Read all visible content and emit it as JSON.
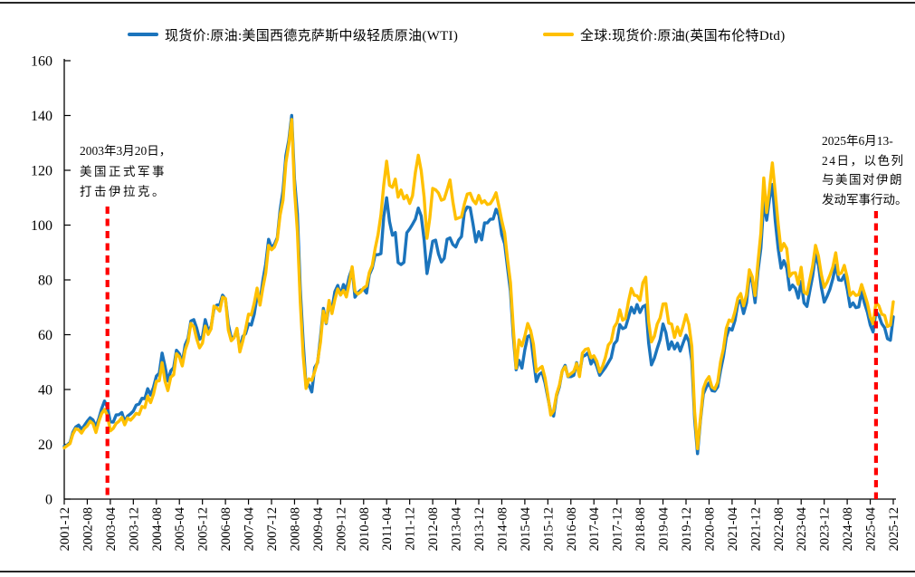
{
  "legend": {
    "items": [
      {
        "label": "现货价:原油:美国西德克萨斯中级轻质原油(WTI)",
        "color": "#1b74bc"
      },
      {
        "label": "全球:现货价:原油(英国布伦特Dtd)",
        "color": "#ffc000"
      }
    ]
  },
  "annotations": {
    "left": {
      "line1": "2003年3月20日，",
      "line2": "美国正式军事",
      "line3": "打击伊拉克。",
      "event_x": "2003-03"
    },
    "right": {
      "line1": "2025年6月13-",
      "line2": "24日，以色列",
      "line3": "与美国对伊朗",
      "line4": "发动军事行动。",
      "event_x": "2025-06"
    }
  },
  "chart_data": {
    "type": "line",
    "title": "",
    "xlabel": "",
    "ylabel": "",
    "x_start": "2001-12",
    "x_end": "2025-12",
    "x_frequency": "monthly",
    "ylim": [
      0,
      160
    ],
    "y_ticks": [
      0,
      20,
      40,
      60,
      80,
      100,
      120,
      140,
      160
    ],
    "grid": false,
    "legend_position": "top",
    "x_ticklabels": [
      "2001-12",
      "2002-08",
      "2003-04",
      "2003-12",
      "2004-08",
      "2005-04",
      "2005-12",
      "2006-08",
      "2007-04",
      "2007-12",
      "2008-08",
      "2009-04",
      "2009-12",
      "2010-08",
      "2011-04",
      "2011-12",
      "2012-08",
      "2013-04",
      "2013-12",
      "2014-08",
      "2015-04",
      "2015-12",
      "2016-08",
      "2017-04",
      "2017-12",
      "2018-08",
      "2019-04",
      "2019-12",
      "2020-08",
      "2021-04",
      "2021-12",
      "2022-08",
      "2023-04",
      "2023-12",
      "2024-08",
      "2025-04",
      "2025-12"
    ],
    "event_lines": [
      {
        "x": "2003-03",
        "color": "#ff0000",
        "style": "dashed",
        "label": "2003年3月20日，美国正式军事打击伊拉克。"
      },
      {
        "x": "2025-06",
        "color": "#ff0000",
        "style": "dashed",
        "label": "2025年6月13-24日，以色列与美国对伊朗发动军事行动。"
      }
    ],
    "series": [
      {
        "name": "现货价:原油:美国西德克萨斯中级轻质原油(WTI)",
        "color": "#1b74bc",
        "values": [
          19.3,
          19.7,
          20.7,
          24.4,
          26.3,
          27.0,
          25.5,
          26.9,
          28.4,
          29.7,
          28.9,
          26.3,
          29.4,
          33.0,
          35.8,
          33.5,
          28.2,
          28.1,
          30.7,
          30.8,
          31.6,
          28.3,
          30.3,
          31.1,
          32.1,
          34.3,
          34.7,
          36.8,
          36.7,
          40.3,
          38.0,
          40.8,
          44.9,
          46.0,
          53.3,
          48.5,
          43.1,
          46.8,
          48.0,
          54.3,
          53.0,
          49.8,
          56.3,
          58.7,
          65.0,
          65.5,
          62.4,
          58.3,
          59.4,
          65.5,
          61.6,
          62.9,
          69.4,
          70.8,
          70.9,
          74.4,
          73.0,
          63.8,
          58.9,
          59.1,
          62.0,
          54.5,
          59.3,
          60.4,
          64.0,
          63.5,
          67.5,
          74.1,
          72.4,
          79.9,
          85.8,
          94.8,
          91.7,
          93.0,
          95.4,
          105.5,
          112.6,
          125.4,
          131.0,
          140.0,
          116.7,
          104.1,
          76.6,
          57.3,
          41.1,
          41.7,
          39.1,
          48.0,
          49.8,
          59.0,
          69.6,
          64.1,
          71.0,
          69.4,
          75.7,
          78.0,
          74.5,
          78.3,
          76.4,
          81.2,
          84.3,
          73.7,
          75.3,
          76.3,
          76.6,
          75.2,
          81.9,
          84.3,
          89.2,
          89.2,
          89.6,
          103.0,
          110.0,
          101.3,
          96.3,
          97.3,
          86.3,
          85.6,
          86.4,
          97.2,
          98.6,
          100.3,
          102.2,
          106.2,
          103.3,
          94.7,
          82.3,
          87.9,
          94.1,
          94.5,
          89.5,
          86.5,
          87.9,
          94.8,
          95.3,
          92.9,
          92.0,
          94.5,
          95.8,
          104.7,
          106.6,
          106.3,
          100.5,
          93.9,
          97.6,
          94.6,
          100.8,
          100.8,
          102.1,
          102.2,
          105.8,
          103.6,
          96.5,
          93.2,
          84.4,
          75.8,
          59.3,
          47.2,
          50.6,
          47.8,
          54.5,
          59.3,
          59.8,
          51.2,
          42.9,
          45.5,
          46.2,
          42.4,
          37.2,
          31.7,
          30.3,
          37.6,
          41.0,
          46.7,
          48.8,
          44.7,
          44.7,
          45.2,
          49.8,
          45.7,
          52.0,
          52.5,
          53.5,
          49.3,
          51.1,
          48.5,
          45.2,
          46.6,
          48.0,
          49.8,
          51.6,
          56.6,
          57.9,
          63.7,
          62.2,
          62.7,
          66.3,
          70.0,
          67.9,
          71.0,
          68.1,
          70.2,
          70.8,
          57.0,
          49.0,
          51.4,
          55.0,
          58.2,
          63.9,
          60.8,
          54.7,
          57.4,
          54.8,
          56.9,
          54.0,
          57.0,
          59.8,
          57.5,
          50.5,
          29.2,
          16.6,
          28.6,
          38.3,
          40.8,
          42.4,
          39.6,
          39.4,
          41.0,
          47.0,
          52.0,
          59.0,
          62.3,
          61.7,
          65.2,
          71.4,
          72.5,
          67.7,
          71.6,
          81.2,
          79.2,
          71.7,
          83.2,
          91.6,
          108.5,
          101.8,
          109.5,
          114.8,
          101.6,
          91.5,
          84.3,
          87.0,
          84.4,
          76.4,
          78.1,
          76.9,
          73.4,
          79.4,
          71.6,
          70.3,
          76.0,
          81.4,
          89.4,
          85.5,
          77.4,
          71.9,
          74.0,
          76.6,
          80.4,
          85.4,
          80.0,
          79.8,
          81.8,
          76.7,
          70.2,
          71.6,
          69.9,
          70.1,
          75.7,
          71.5,
          68.2,
          63.5,
          61.0,
          68.5,
          67.0,
          64.0,
          62.5,
          58.5,
          58.0,
          66.5
        ]
      },
      {
        "name": "全球:现货价:原油(英国布伦特Dtd)",
        "color": "#ffc000",
        "values": [
          18.7,
          19.5,
          20.3,
          23.7,
          25.7,
          25.3,
          24.1,
          25.8,
          26.7,
          28.4,
          27.5,
          24.3,
          28.3,
          31.2,
          32.7,
          30.5,
          24.9,
          25.8,
          27.6,
          28.4,
          29.8,
          27.1,
          29.6,
          28.8,
          29.9,
          31.3,
          30.9,
          33.8,
          33.4,
          37.6,
          35.2,
          38.3,
          43.0,
          43.2,
          49.8,
          43.1,
          39.6,
          44.5,
          45.4,
          53.1,
          51.9,
          48.6,
          54.4,
          57.5,
          64.1,
          62.9,
          58.5,
          55.2,
          56.9,
          63.1,
          60.1,
          62.1,
          70.4,
          69.8,
          68.6,
          73.7,
          73.2,
          61.7,
          57.8,
          58.9,
          62.3,
          53.7,
          57.6,
          62.1,
          67.5,
          67.2,
          71.5,
          77.0,
          70.8,
          77.2,
          82.5,
          92.6,
          91.0,
          92.0,
          94.8,
          103.7,
          109.1,
          122.8,
          129.5,
          138.5,
          113.0,
          97.7,
          71.9,
          52.5,
          40.4,
          43.9,
          43.3,
          46.5,
          50.2,
          57.3,
          68.6,
          64.4,
          72.5,
          67.7,
          72.8,
          76.7,
          74.5,
          76.2,
          73.8,
          78.8,
          84.8,
          75.9,
          74.8,
          75.6,
          77.1,
          77.8,
          82.7,
          85.3,
          91.4,
          96.5,
          103.7,
          114.6,
          123.3,
          114.5,
          113.8,
          116.8,
          110.2,
          112.8,
          109.6,
          110.8,
          107.9,
          110.7,
          119.3,
          125.5,
          119.8,
          110.3,
          95.2,
          102.6,
          113.4,
          112.9,
          111.7,
          109.1,
          109.5,
          112.9,
          116.5,
          108.5,
          102.2,
          102.6,
          103.0,
          107.7,
          111.3,
          111.6,
          109.1,
          107.8,
          110.8,
          108.1,
          108.9,
          107.5,
          107.8,
          109.5,
          111.8,
          106.8,
          101.6,
          97.1,
          87.4,
          79.0,
          62.3,
          47.8,
          58.1,
          55.9,
          59.5,
          64.1,
          61.5,
          56.6,
          46.5,
          47.6,
          48.4,
          44.3,
          38.0,
          30.7,
          32.2,
          38.2,
          41.6,
          46.7,
          48.3,
          44.9,
          45.8,
          46.6,
          49.5,
          44.7,
          53.3,
          54.6,
          54.9,
          51.6,
          52.3,
          50.3,
          46.4,
          48.5,
          51.7,
          56.2,
          57.5,
          62.7,
          64.4,
          69.1,
          65.3,
          66.0,
          72.1,
          76.9,
          74.4,
          74.2,
          72.5,
          78.9,
          81.0,
          64.7,
          57.4,
          59.4,
          63.9,
          66.1,
          71.2,
          71.3,
          64.2,
          63.9,
          59.0,
          62.8,
          59.7,
          63.2,
          67.3,
          63.7,
          55.7,
          32.0,
          18.4,
          29.4,
          40.3,
          43.2,
          44.7,
          40.9,
          40.2,
          42.7,
          50.2,
          54.8,
          62.3,
          65.4,
          64.8,
          68.5,
          73.4,
          75.0,
          70.5,
          74.6,
          83.7,
          81.1,
          74.3,
          86.5,
          97.1,
          117.2,
          104.6,
          113.3,
          122.7,
          111.9,
          100.5,
          90.7,
          93.3,
          91.4,
          81.3,
          82.5,
          82.6,
          78.4,
          84.6,
          75.5,
          74.8,
          80.1,
          85.1,
          92.6,
          88.7,
          82.0,
          77.3,
          79.1,
          81.7,
          84.7,
          89.9,
          82.0,
          82.6,
          85.3,
          80.9,
          74.3,
          75.6,
          74.3,
          74.6,
          78.3,
          75.0,
          71.5,
          66.5,
          64.0,
          71.8,
          70.5,
          67.5,
          67.0,
          63.0,
          63.5,
          72.0
        ]
      }
    ]
  }
}
